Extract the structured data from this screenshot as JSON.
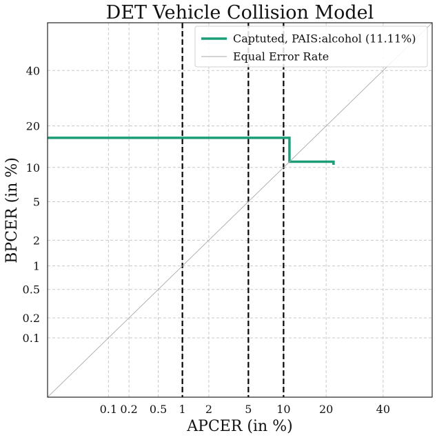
{
  "chart_data": {
    "type": "line",
    "title": "DET Vehicle Collision Model",
    "xlabel": "APCER (in %)",
    "ylabel": "BPCER (in %)",
    "scale": "probit",
    "xlim": [
      0.01,
      60
    ],
    "ylim": [
      0.01,
      60
    ],
    "x_ticks": [
      {
        "value": 0.1,
        "label": "0.1"
      },
      {
        "value": 0.2,
        "label": "0.2"
      },
      {
        "value": 0.5,
        "label": "0.5"
      },
      {
        "value": 1,
        "label": "1"
      },
      {
        "value": 2,
        "label": "2"
      },
      {
        "value": 5,
        "label": "5"
      },
      {
        "value": 10,
        "label": "10"
      },
      {
        "value": 20,
        "label": "20"
      },
      {
        "value": 40,
        "label": "40"
      }
    ],
    "y_ticks": [
      {
        "value": 0.1,
        "label": "0.1"
      },
      {
        "value": 0.2,
        "label": "0.2"
      },
      {
        "value": 0.5,
        "label": "0.5"
      },
      {
        "value": 1,
        "label": "1"
      },
      {
        "value": 2,
        "label": "2"
      },
      {
        "value": 5,
        "label": "5"
      },
      {
        "value": 10,
        "label": "10"
      },
      {
        "value": 20,
        "label": "20"
      },
      {
        "value": 40,
        "label": "40"
      }
    ],
    "grid": true,
    "legend_position": "top-right",
    "series": [
      {
        "name": "Captuted, PAIS:alcohol (11.11%)",
        "color": "#1b9e77",
        "style": "solid",
        "x": [
          0.01,
          11.11,
          11.11,
          22.2,
          22.2
        ],
        "y": [
          16.67,
          16.67,
          11.11,
          11.11,
          10.5
        ]
      },
      {
        "name": "Equal Error Rate",
        "color": "#a9a9a9",
        "style": "thin",
        "x": [
          0.01,
          60
        ],
        "y": [
          0.01,
          60
        ]
      }
    ],
    "reference_lines": [
      {
        "axis": "x",
        "value": 1,
        "style": "dashed",
        "color": "#000000"
      },
      {
        "axis": "x",
        "value": 5,
        "style": "dashed",
        "color": "#000000"
      },
      {
        "axis": "x",
        "value": 10,
        "style": "dashed",
        "color": "#000000"
      }
    ]
  }
}
